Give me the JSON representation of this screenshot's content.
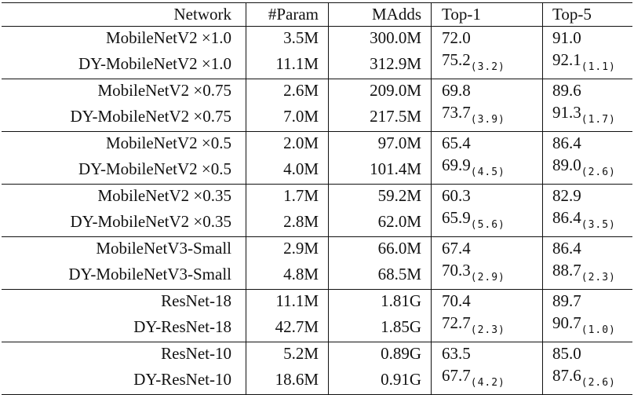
{
  "table": {
    "headers": {
      "network": "Network",
      "param": "#Param",
      "madds": "MAdds",
      "top1": "Top-1",
      "top5": "Top-5"
    },
    "groups": [
      {
        "rows": [
          {
            "network": "MobileNetV2 ×1.0",
            "param": "3.5M",
            "madds": "300.0M",
            "top1": "72.0",
            "top1_gain": "",
            "top5": "91.0",
            "top5_gain": ""
          },
          {
            "network": "DY-MobileNetV2 ×1.0",
            "param": "11.1M",
            "madds": "312.9M",
            "top1": "75.2",
            "top1_gain": "(3.2)",
            "top5": "92.1",
            "top5_gain": "(1.1)"
          }
        ]
      },
      {
        "rows": [
          {
            "network": "MobileNetV2 ×0.75",
            "param": "2.6M",
            "madds": "209.0M",
            "top1": "69.8",
            "top1_gain": "",
            "top5": "89.6",
            "top5_gain": ""
          },
          {
            "network": "DY-MobileNetV2 ×0.75",
            "param": "7.0M",
            "madds": "217.5M",
            "top1": "73.7",
            "top1_gain": "(3.9)",
            "top5": "91.3",
            "top5_gain": "(1.7)"
          }
        ]
      },
      {
        "rows": [
          {
            "network": "MobileNetV2 ×0.5",
            "param": "2.0M",
            "madds": "97.0M",
            "top1": "65.4",
            "top1_gain": "",
            "top5": "86.4",
            "top5_gain": ""
          },
          {
            "network": "DY-MobileNetV2 ×0.5",
            "param": "4.0M",
            "madds": "101.4M",
            "top1": "69.9",
            "top1_gain": "(4.5)",
            "top5": "89.0",
            "top5_gain": "(2.6)"
          }
        ]
      },
      {
        "rows": [
          {
            "network": "MobileNetV2 ×0.35",
            "param": "1.7M",
            "madds": "59.2M",
            "top1": "60.3",
            "top1_gain": "",
            "top5": "82.9",
            "top5_gain": ""
          },
          {
            "network": "DY-MobileNetV2 ×0.35",
            "param": "2.8M",
            "madds": "62.0M",
            "top1": "65.9",
            "top1_gain": "(5.6)",
            "top5": "86.4",
            "top5_gain": "(3.5)"
          }
        ]
      },
      {
        "rows": [
          {
            "network": "MobileNetV3-Small",
            "param": "2.9M",
            "madds": "66.0M",
            "top1": "67.4",
            "top1_gain": "",
            "top5": "86.4",
            "top5_gain": ""
          },
          {
            "network": "DY-MobileNetV3-Small",
            "param": "4.8M",
            "madds": "68.5M",
            "top1": "70.3",
            "top1_gain": "(2.9)",
            "top5": "88.7",
            "top5_gain": "(2.3)"
          }
        ]
      },
      {
        "rows": [
          {
            "network": "ResNet-18",
            "param": "11.1M",
            "madds": "1.81G",
            "top1": "70.4",
            "top1_gain": "",
            "top5": "89.7",
            "top5_gain": ""
          },
          {
            "network": "DY-ResNet-18",
            "param": "42.7M",
            "madds": "1.85G",
            "top1": "72.7",
            "top1_gain": "(2.3)",
            "top5": "90.7",
            "top5_gain": "(1.0)"
          }
        ]
      },
      {
        "rows": [
          {
            "network": "ResNet-10",
            "param": "5.2M",
            "madds": "0.89G",
            "top1": "63.5",
            "top1_gain": "",
            "top5": "85.0",
            "top5_gain": ""
          },
          {
            "network": "DY-ResNet-10",
            "param": "18.6M",
            "madds": "0.91G",
            "top1": "67.7",
            "top1_gain": "(4.2)",
            "top5": "87.6",
            "top5_gain": "(2.6)"
          }
        ]
      }
    ]
  }
}
